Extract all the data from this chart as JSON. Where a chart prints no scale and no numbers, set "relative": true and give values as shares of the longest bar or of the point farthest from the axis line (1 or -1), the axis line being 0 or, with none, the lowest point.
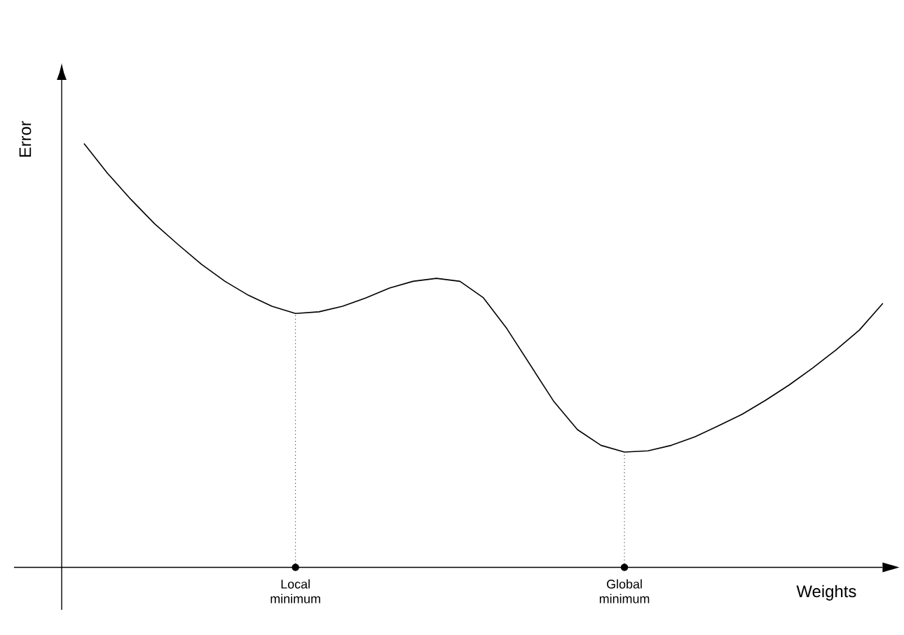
{
  "chart_data": {
    "type": "line",
    "relative": true,
    "xlabel": "Weights",
    "ylabel": "Error",
    "color": "#000000",
    "marker": "none",
    "line_style": "solid",
    "categories": [
      null,
      null,
      null,
      null,
      null,
      null,
      null,
      null,
      null,
      "Local minimum",
      null,
      null,
      null,
      null,
      null,
      null,
      null,
      null,
      null,
      null,
      null,
      null,
      null,
      "Global minimum",
      null,
      null,
      null,
      null,
      null,
      null,
      null,
      null,
      null,
      null,
      null
    ],
    "values": [
      1.0,
      0.93,
      0.868,
      0.811,
      0.762,
      0.715,
      0.675,
      0.642,
      0.616,
      0.599,
      0.603,
      0.616,
      0.636,
      0.659,
      0.675,
      0.682,
      0.675,
      0.636,
      0.563,
      0.477,
      0.391,
      0.325,
      0.288,
      0.272,
      0.275,
      0.288,
      0.308,
      0.334,
      0.361,
      0.394,
      0.43,
      0.47,
      0.513,
      0.56,
      0.623
    ],
    "ref_lines": [
      {
        "axis": "x",
        "value": "Local minimum",
        "line_style": "dotted"
      },
      {
        "axis": "x",
        "value": "Global minimum",
        "line_style": "dotted"
      }
    ]
  }
}
